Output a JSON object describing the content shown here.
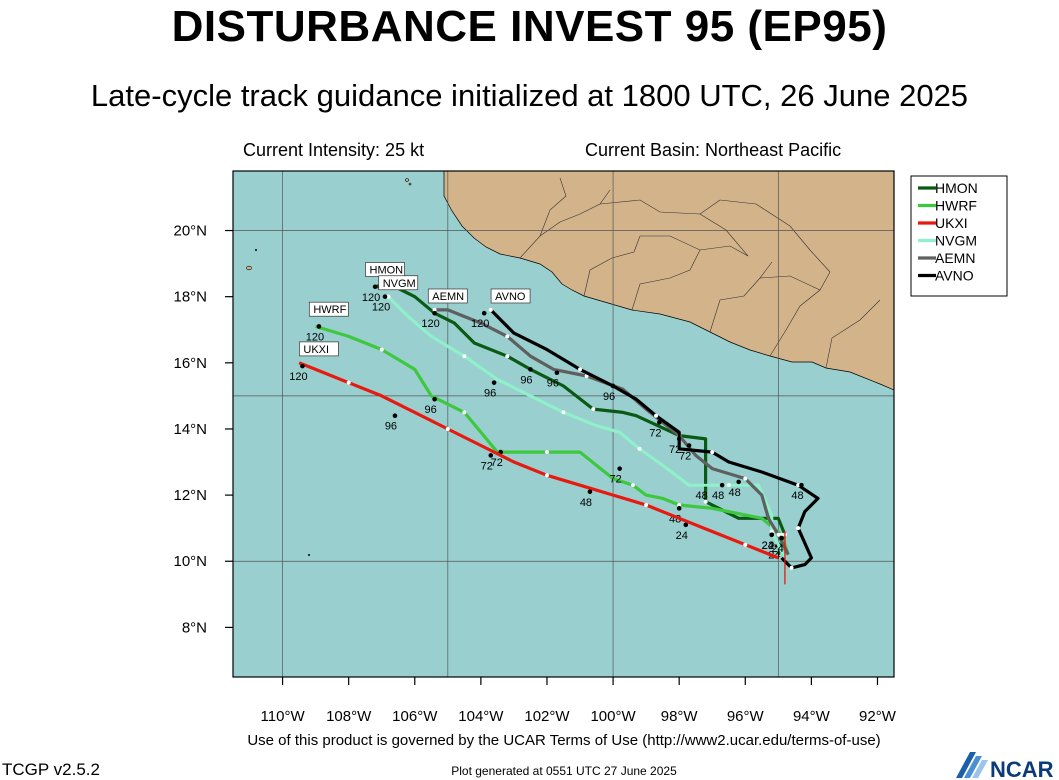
{
  "header": {
    "title": "DISTURBANCE INVEST 95 (EP95)",
    "subtitle": "Late-cycle track guidance initialized at 1800 UTC, 26 June 2025",
    "current_intensity": "Current Intensity: 25 kt",
    "current_basin": "Current Basin: Northeast Pacific"
  },
  "footer": {
    "terms": "Use of this product is governed by the UCAR Terms of Use (http://www2.ucar.edu/terms-of-use)",
    "version": "TCGP v2.5.2",
    "generated": "Plot generated at 0551 UTC   27 June 2025",
    "logo": "NCAR"
  },
  "colors": {
    "ocean": "#99cfcf",
    "land": "#d3b38a",
    "border": "#222222"
  },
  "chart_data": {
    "type": "map",
    "x_range": [
      -111.5,
      -91.5
    ],
    "y_range": [
      6.5,
      21.8
    ],
    "x_ticks": [
      {
        "value": -110,
        "label": "110°W"
      },
      {
        "value": -108,
        "label": "108°W"
      },
      {
        "value": -106,
        "label": "106°W"
      },
      {
        "value": -104,
        "label": "104°W"
      },
      {
        "value": -102,
        "label": "102°W"
      },
      {
        "value": -100,
        "label": "100°W"
      },
      {
        "value": -98,
        "label": "98°W"
      },
      {
        "value": -96,
        "label": "96°W"
      },
      {
        "value": -94,
        "label": "94°W"
      },
      {
        "value": -92,
        "label": "92°W"
      }
    ],
    "y_ticks": [
      {
        "value": 8,
        "label": "8°N"
      },
      {
        "value": 10,
        "label": "10°N"
      },
      {
        "value": 12,
        "label": "12°N"
      },
      {
        "value": 14,
        "label": "14°N"
      },
      {
        "value": 16,
        "label": "16°N"
      },
      {
        "value": 18,
        "label": "18°N"
      },
      {
        "value": 20,
        "label": "20°N"
      }
    ],
    "grid_lon": [
      -110,
      -105,
      -100,
      -95
    ],
    "grid_lat": [
      10,
      15,
      20
    ],
    "legend_position": "top-right",
    "series": [
      {
        "name": "HMON",
        "color": "#0b5a14",
        "track": [
          [
            -95.0,
            10.2
          ],
          [
            -94.8,
            10.8
          ],
          [
            -95.0,
            11.3
          ],
          [
            -96.2,
            11.3
          ],
          [
            -97.2,
            11.8
          ],
          [
            -97.2,
            13.0
          ],
          [
            -97.2,
            13.7
          ],
          [
            -98.0,
            13.8
          ],
          [
            -99.3,
            14.4
          ],
          [
            -99.7,
            14.5
          ],
          [
            -100.6,
            14.6
          ],
          [
            -101.5,
            15.3
          ],
          [
            -102.5,
            15.8
          ],
          [
            -103.2,
            16.2
          ],
          [
            -104.2,
            16.6
          ],
          [
            -104.8,
            17.2
          ],
          [
            -105.4,
            17.5
          ],
          [
            -106.0,
            18.0
          ],
          [
            -106.8,
            18.4
          ],
          [
            -107.2,
            18.3
          ],
          [
            -106.5,
            18.3
          ]
        ],
        "labels": [
          {
            "hour": "24",
            "lon": -95.0,
            "lat": 10.8
          },
          {
            "hour": "48",
            "lon": -97.2,
            "lat": 12.3
          },
          {
            "hour": "72",
            "lon": -98.0,
            "lat": 13.7
          },
          {
            "hour": "96",
            "lon": -102.5,
            "lat": 15.8
          },
          {
            "hour": "120",
            "lon": -107.2,
            "lat": 18.3
          }
        ],
        "box": {
          "text": "HMON",
          "lon": -107.4,
          "lat": 18.7
        }
      },
      {
        "name": "HWRF",
        "color": "#3ec83e",
        "track": [
          [
            -94.7,
            10.2
          ],
          [
            -94.9,
            10.8
          ],
          [
            -95.5,
            11.3
          ],
          [
            -97.0,
            11.6
          ],
          [
            -98.0,
            11.7
          ],
          [
            -98.5,
            11.9
          ],
          [
            -99.0,
            12.0
          ],
          [
            -99.4,
            12.3
          ],
          [
            -100.0,
            12.5
          ],
          [
            -101.0,
            13.3
          ],
          [
            -102.0,
            13.3
          ],
          [
            -103.0,
            13.3
          ],
          [
            -103.5,
            13.3
          ],
          [
            -104.5,
            14.5
          ],
          [
            -105.5,
            15.0
          ],
          [
            -106.0,
            15.8
          ],
          [
            -107.0,
            16.4
          ],
          [
            -108.0,
            16.8
          ],
          [
            -109.0,
            17.1
          ]
        ],
        "labels": [
          {
            "hour": "24",
            "lon": -95.0,
            "lat": 10.5
          },
          {
            "hour": "48",
            "lon": -98.0,
            "lat": 11.6
          },
          {
            "hour": "72",
            "lon": -103.4,
            "lat": 13.3
          },
          {
            "hour": "96",
            "lon": -105.4,
            "lat": 14.9
          },
          {
            "hour": "120",
            "lon": -108.9,
            "lat": 17.1
          }
        ],
        "box": {
          "text": "HWRF",
          "lon": -109.1,
          "lat": 17.5
        }
      },
      {
        "name": "UKXI",
        "color": "#e8190e",
        "track": [
          [
            -95.0,
            10.1
          ],
          [
            -96.0,
            10.5
          ],
          [
            -97.0,
            10.9
          ],
          [
            -98.0,
            11.3
          ],
          [
            -99.0,
            11.7
          ],
          [
            -100.0,
            12.0
          ],
          [
            -101.0,
            12.3
          ],
          [
            -102.0,
            12.6
          ],
          [
            -103.0,
            13.0
          ],
          [
            -104.0,
            13.5
          ],
          [
            -105.0,
            14.0
          ],
          [
            -106.0,
            14.5
          ],
          [
            -107.0,
            15.0
          ],
          [
            -108.0,
            15.4
          ],
          [
            -109.0,
            15.8
          ],
          [
            -109.5,
            16.0
          ]
        ],
        "labels": [
          {
            "hour": "24",
            "lon": -97.8,
            "lat": 11.1
          },
          {
            "hour": "48",
            "lon": -100.7,
            "lat": 12.1
          },
          {
            "hour": "72",
            "lon": -103.7,
            "lat": 13.2
          },
          {
            "hour": "96",
            "lon": -106.6,
            "lat": 14.4
          },
          {
            "hour": "120",
            "lon": -109.4,
            "lat": 15.9
          }
        ],
        "box": {
          "text": "UKXI",
          "lon": -109.4,
          "lat": 16.3
        }
      },
      {
        "name": "NVGM",
        "color": "#8ff0c9",
        "track": [
          [
            -94.8,
            10.1
          ],
          [
            -95.2,
            10.9
          ],
          [
            -95.2,
            11.4
          ],
          [
            -95.6,
            12.3
          ],
          [
            -96.5,
            12.3
          ],
          [
            -97.7,
            12.3
          ],
          [
            -98.5,
            12.9
          ],
          [
            -99.2,
            13.4
          ],
          [
            -99.8,
            13.9
          ],
          [
            -100.5,
            14.1
          ],
          [
            -101.5,
            14.5
          ],
          [
            -102.5,
            15.0
          ],
          [
            -103.5,
            15.5
          ],
          [
            -104.5,
            16.2
          ],
          [
            -105.5,
            16.8
          ],
          [
            -106.2,
            17.4
          ],
          [
            -106.8,
            18.0
          ]
        ],
        "labels": [
          {
            "hour": "24",
            "lon": -95.2,
            "lat": 10.8
          },
          {
            "hour": "48",
            "lon": -96.7,
            "lat": 12.3
          },
          {
            "hour": "72",
            "lon": -99.8,
            "lat": 12.8
          },
          {
            "hour": "96",
            "lon": -103.6,
            "lat": 15.4
          },
          {
            "hour": "120",
            "lon": -106.9,
            "lat": 18.0
          }
        ],
        "box": {
          "text": "NVGM",
          "lon": -107.0,
          "lat": 18.3
        }
      },
      {
        "name": "AEMN",
        "color": "#5f5f5f",
        "track": [
          [
            -94.7,
            10.2
          ],
          [
            -95.0,
            10.8
          ],
          [
            -95.3,
            11.3
          ],
          [
            -95.5,
            12.0
          ],
          [
            -96.0,
            12.5
          ],
          [
            -97.0,
            12.8
          ],
          [
            -97.5,
            13.2
          ],
          [
            -98.0,
            13.8
          ],
          [
            -99.0,
            14.6
          ],
          [
            -99.7,
            15.2
          ],
          [
            -100.8,
            15.6
          ],
          [
            -101.8,
            15.8
          ],
          [
            -102.5,
            16.2
          ],
          [
            -103.2,
            16.8
          ],
          [
            -104.0,
            17.2
          ],
          [
            -105.0,
            17.6
          ],
          [
            -105.4,
            17.6
          ]
        ],
        "labels": [
          {
            "hour": "24",
            "lon": -94.9,
            "lat": 10.7
          },
          {
            "hour": "48",
            "lon": -96.2,
            "lat": 12.4
          },
          {
            "hour": "72",
            "lon": -98.6,
            "lat": 14.2
          },
          {
            "hour": "96",
            "lon": -101.7,
            "lat": 15.7
          },
          {
            "hour": "120",
            "lon": -105.4,
            "lat": 17.5
          }
        ],
        "box": {
          "text": "AEMN",
          "lon": -105.5,
          "lat": 17.9
        }
      },
      {
        "name": "AVNO",
        "color": "#000000",
        "track": [
          [
            -94.9,
            10.1
          ],
          [
            -94.6,
            9.8
          ],
          [
            -94.2,
            9.9
          ],
          [
            -94.0,
            10.1
          ],
          [
            -94.4,
            11.0
          ],
          [
            -94.2,
            11.5
          ],
          [
            -93.8,
            11.9
          ],
          [
            -94.4,
            12.3
          ],
          [
            -95.5,
            12.7
          ],
          [
            -96.5,
            13.0
          ],
          [
            -97.0,
            13.3
          ],
          [
            -98.0,
            13.4
          ],
          [
            -98.0,
            13.9
          ],
          [
            -98.7,
            14.4
          ],
          [
            -99.3,
            14.9
          ],
          [
            -100.0,
            15.3
          ],
          [
            -101.0,
            15.8
          ],
          [
            -102.0,
            16.4
          ],
          [
            -103.0,
            16.9
          ],
          [
            -103.7,
            17.6
          ]
        ],
        "labels": [
          {
            "hour": "24",
            "lon": -95.2,
            "lat": 10.8
          },
          {
            "hour": "48",
            "lon": -94.3,
            "lat": 12.3
          },
          {
            "hour": "72",
            "lon": -97.7,
            "lat": 13.5
          },
          {
            "hour": "96",
            "lon": -100.0,
            "lat": 15.3
          },
          {
            "hour": "120",
            "lon": -103.9,
            "lat": 17.5
          }
        ],
        "box": {
          "text": "AVNO",
          "lon": -103.6,
          "lat": 17.9
        }
      }
    ]
  }
}
